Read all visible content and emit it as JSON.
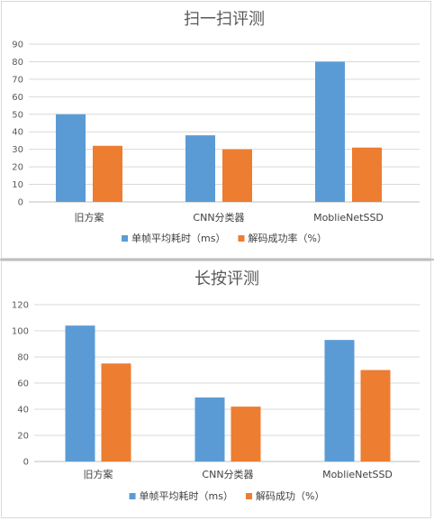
{
  "chart_data": [
    {
      "type": "bar",
      "title": "扫一扫评测",
      "categories": [
        "旧方案",
        "CNN分类器",
        "MoblieNetSSD"
      ],
      "series": [
        {
          "name": "单帧平均耗时（ms）",
          "values": [
            50,
            38,
            80
          ],
          "color": "#5b9bd5"
        },
        {
          "name": "解码成功率（%）",
          "values": [
            32,
            30,
            31
          ],
          "color": "#ed7d31"
        }
      ],
      "ylim": [
        0,
        90
      ],
      "yticks": [
        0,
        10,
        20,
        30,
        40,
        50,
        60,
        70,
        80,
        90
      ],
      "grid": true,
      "legend": "bottom"
    },
    {
      "type": "bar",
      "title": "长按评测",
      "categories": [
        "旧方案",
        "CNN分类器",
        "MoblieNetSSD"
      ],
      "series": [
        {
          "name": "单帧平均耗时（ms）",
          "values": [
            104,
            49,
            93
          ],
          "color": "#5b9bd5"
        },
        {
          "name": "解码成功（%）",
          "values": [
            75,
            42,
            70
          ],
          "color": "#ed7d31"
        }
      ],
      "ylim": [
        0,
        120
      ],
      "yticks": [
        0,
        20,
        40,
        60,
        80,
        100,
        120
      ],
      "grid": true,
      "legend": "bottom"
    }
  ]
}
